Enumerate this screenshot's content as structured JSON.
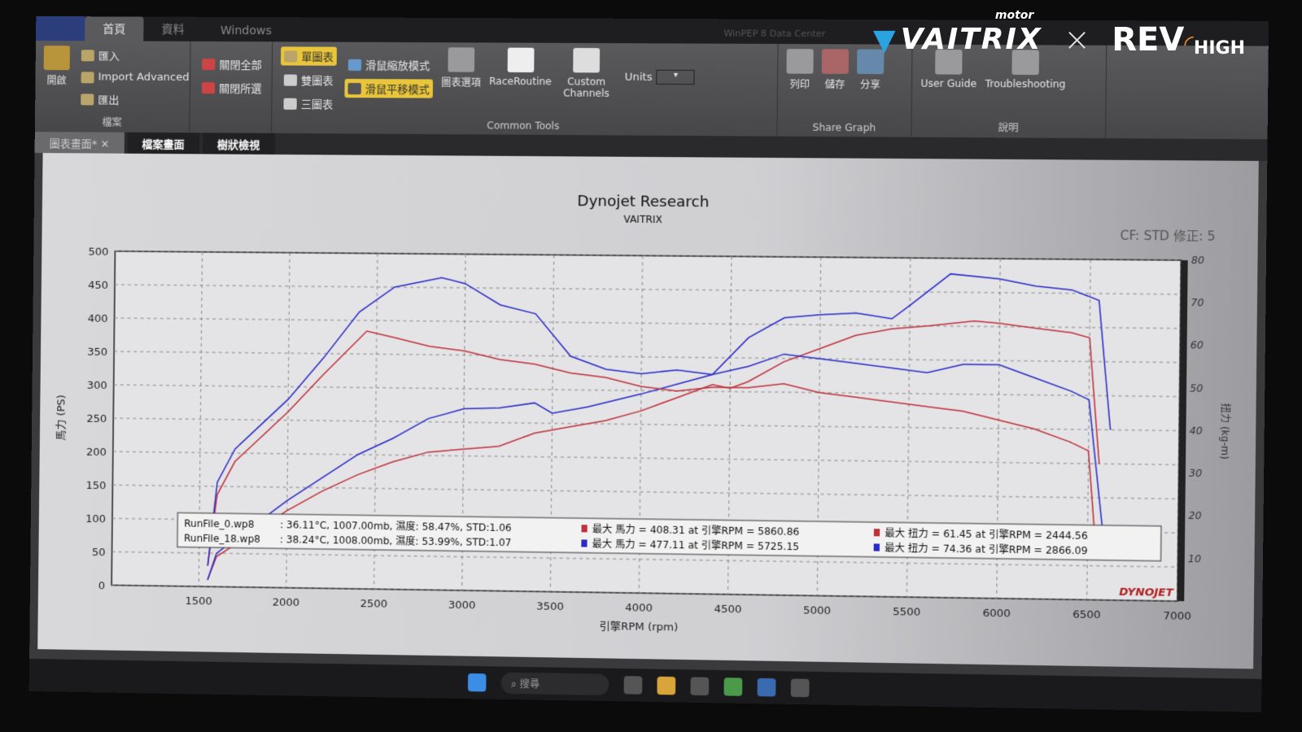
{
  "app": {
    "tabs": [
      "首頁",
      "資料",
      "Windows"
    ],
    "title": "WinPEP 8 Data Center"
  },
  "ribbon": {
    "file": {
      "open": "開啟",
      "import": "匯入",
      "import_adv": "Import Advanced",
      "export": "匯出",
      "close_all": "關閉全部",
      "close_sel": "關閉所選",
      "label": "檔案"
    },
    "tools": {
      "single": "單圖表",
      "double": "雙圖表",
      "triple": "三圖表",
      "zoom_mode": "滑鼠縮放模式",
      "pan_mode": "滑鼠平移模式",
      "options": "圖表選項",
      "race": "RaceRoutine",
      "custom": "Custom Channels",
      "units": "Units",
      "label": "Common Tools"
    },
    "share": {
      "print": "列印",
      "save": "儲存",
      "share": "分享",
      "label": "Share Graph"
    },
    "help": {
      "guide": "User Guide",
      "trouble": "Troubleshooting",
      "label": "說明"
    }
  },
  "doc_tabs": [
    "圖表畫面*",
    "檔案畫面",
    "樹狀檢視"
  ],
  "taskbar": {
    "search": "搜尋"
  },
  "brand": {
    "left": "VAITRIX",
    "motor": "motor",
    "x": "×",
    "right": "REV",
    "right_sub": "HIGH",
    "accent": "#2aa3e0",
    "orange": "#e8862a"
  },
  "chart_data": {
    "type": "line",
    "title": "Dynojet Research",
    "subtitle": "VAITRIX",
    "cf": "CF: STD 修正: 5",
    "xlabel": "引擎RPM (rpm)",
    "ylabel": "馬力 (PS)",
    "y2label": "扭力 (kg-m)",
    "xlim": [
      1000,
      7000
    ],
    "ylim": [
      0,
      500
    ],
    "y2lim": [
      0,
      80
    ],
    "xticks": [
      1500,
      2000,
      2500,
      3000,
      3500,
      4000,
      4500,
      5000,
      5500,
      6000,
      6500,
      7000
    ],
    "yticks": [
      0,
      50,
      100,
      150,
      200,
      250,
      300,
      350,
      400,
      450,
      500
    ],
    "y2ticks": [
      10,
      20,
      30,
      40,
      50,
      60,
      70,
      80
    ],
    "grid": true,
    "watermark": "DYNOJET",
    "colors": {
      "run0": "#c0303a",
      "run18": "#2a2ac8"
    },
    "series": [
      {
        "name": "RunFile_0.wp8",
        "kind": "hp",
        "axis": "left",
        "color": "#c0303a",
        "x": [
          1550,
          1600,
          1800,
          2000,
          2200,
          2400,
          2600,
          2800,
          3000,
          3200,
          3400,
          3600,
          3800,
          4000,
          4200,
          4400,
          4500,
          4600,
          4800,
          5000,
          5200,
          5400,
          5600,
          5860,
          6000,
          6200,
          6400,
          6500,
          6560
        ],
        "y": [
          10,
          45,
          80,
          115,
          145,
          170,
          190,
          205,
          210,
          215,
          235,
          245,
          255,
          270,
          290,
          310,
          305,
          315,
          345,
          365,
          385,
          395,
          400,
          408,
          405,
          398,
          392,
          385,
          200
        ]
      },
      {
        "name": "RunFile_18.wp8",
        "kind": "hp",
        "axis": "left",
        "color": "#2a2ac8",
        "x": [
          1550,
          1600,
          1800,
          2000,
          2200,
          2400,
          2600,
          2800,
          3000,
          3200,
          3400,
          3500,
          3700,
          4000,
          4200,
          4400,
          4600,
          4800,
          5000,
          5200,
          5400,
          5500,
          5725,
          6000,
          6200,
          6400,
          6550,
          6620
        ],
        "y": [
          10,
          50,
          90,
          130,
          165,
          200,
          225,
          255,
          270,
          272,
          280,
          265,
          275,
          295,
          310,
          325,
          380,
          410,
          415,
          418,
          410,
          430,
          477,
          470,
          460,
          455,
          440,
          250
        ]
      },
      {
        "name": "RunFile_0.wp8",
        "kind": "torque",
        "axis": "right",
        "color": "#c0303a",
        "x": [
          1550,
          1600,
          1700,
          1800,
          2000,
          2200,
          2444,
          2600,
          2800,
          3000,
          3200,
          3400,
          3600,
          3800,
          4000,
          4200,
          4400,
          4600,
          4800,
          5000,
          5200,
          5400,
          5600,
          5800,
          6000,
          6200,
          6400,
          6500,
          6550
        ],
        "y": [
          5,
          22,
          30,
          34,
          42,
          51,
          61.45,
          60,
          58,
          57,
          55,
          54,
          52,
          51,
          49,
          48,
          49,
          49,
          50,
          48,
          47,
          46,
          45,
          44,
          42,
          40,
          37,
          35,
          10
        ]
      },
      {
        "name": "RunFile_18.wp8",
        "kind": "torque",
        "axis": "right",
        "color": "#2a2ac8",
        "x": [
          1550,
          1600,
          1700,
          1800,
          2000,
          2200,
          2400,
          2600,
          2866,
          3000,
          3200,
          3400,
          3600,
          3800,
          4000,
          4200,
          4400,
          4600,
          4800,
          5000,
          5200,
          5400,
          5600,
          5800,
          6000,
          6200,
          6400,
          6500,
          6600
        ],
        "y": [
          5,
          25,
          33,
          37,
          45,
          55,
          66,
          72,
          74.36,
          73,
          68,
          66,
          56,
          53,
          52,
          53,
          52,
          54,
          57,
          56,
          55,
          54,
          53,
          55,
          55,
          52,
          49,
          47,
          10
        ]
      }
    ],
    "legend": [
      {
        "file": "RunFile_0.wp8",
        "cond": ": 36.11°C, 1007.00mb, 濕度: 58.47%, STD:1.06",
        "hp": "最大 馬力 = 408.31 at 引擎RPM = 5860.86",
        "tq": "最大 扭力 = 61.45 at 引擎RPM = 2444.56",
        "color": "#c0303a"
      },
      {
        "file": "RunFile_18.wp8",
        "cond": ": 38.24°C, 1008.00mb, 濕度: 53.99%, STD:1.07",
        "hp": "最大 馬力 = 477.11 at 引擎RPM = 5725.15",
        "tq": "最大 扭力 = 74.36 at 引擎RPM = 2866.09",
        "color": "#2a2ac8"
      }
    ]
  }
}
